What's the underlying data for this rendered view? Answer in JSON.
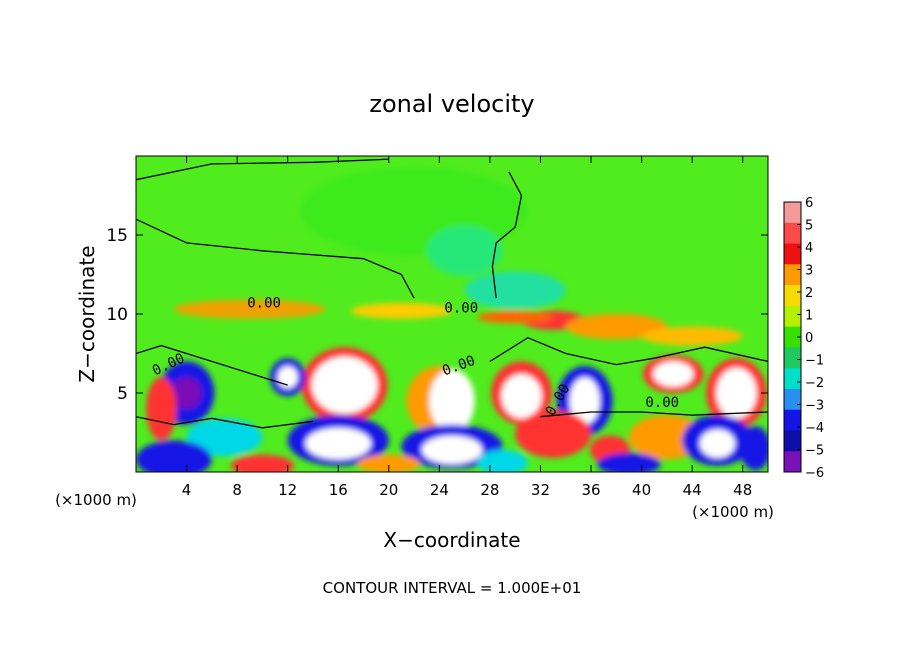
{
  "chart_data": {
    "type": "heatmap",
    "title": "zonal velocity",
    "xlabel": "X−coordinate",
    "ylabel": "Z−coordinate",
    "x_unit_left": "(×1000 m)",
    "x_unit_right": "(×1000 m)",
    "footer": "CONTOUR INTERVAL = 1.000E+01",
    "xlim": [
      0,
      50
    ],
    "ylim": [
      0,
      20
    ],
    "x_ticks": [
      "4",
      "8",
      "12",
      "16",
      "20",
      "24",
      "28",
      "32",
      "36",
      "40",
      "44",
      "48"
    ],
    "y_ticks": [
      "5",
      "10",
      "15"
    ],
    "contour_labels": [
      "0.00",
      "0.00",
      "0.00",
      "0.00",
      "0.00",
      "0.00"
    ],
    "colorbar": {
      "ticks": [
        "6",
        "5",
        "4",
        "3",
        "2",
        "1",
        "0",
        "−1",
        "−2",
        "−3",
        "−4",
        "−5",
        "−6"
      ],
      "colors": [
        "#f59a9a",
        "#ff4a4a",
        "#ee1111",
        "#ff9a00",
        "#f5dc00",
        "#b4f000",
        "#36e000",
        "#20c860",
        "#00e0c8",
        "#2a90f0",
        "#1414e6",
        "#0e0ea8",
        "#7a10b8"
      ]
    },
    "background_color": "#50ec1e"
  }
}
